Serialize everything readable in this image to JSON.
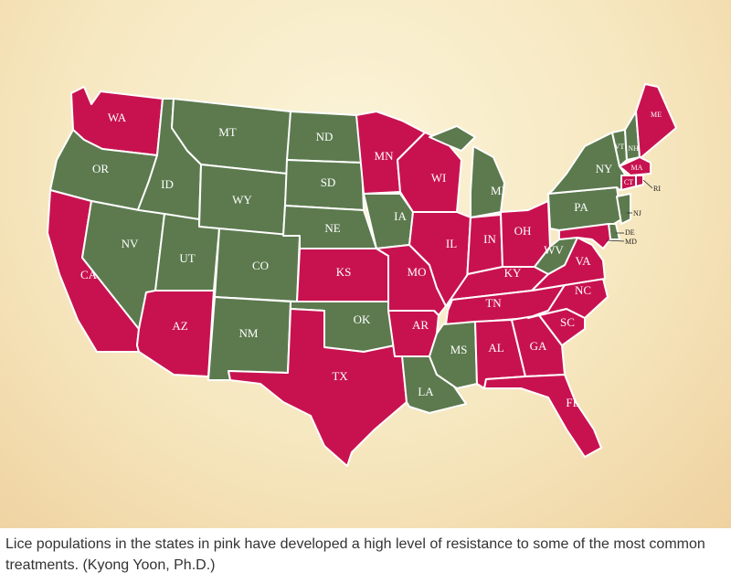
{
  "colors": {
    "resistant": "#c8124f",
    "other": "#5c7a4e",
    "border": "#ffffff",
    "background": "#f6e7bf"
  },
  "caption": "Lice populations in the states in pink have developed a high level of resistance to some of the most common treatments. (Kyong Yoon, Ph.D.)",
  "states": [
    {
      "code": "WA",
      "label": "WA",
      "resistant": true
    },
    {
      "code": "OR",
      "label": "OR",
      "resistant": false
    },
    {
      "code": "CA",
      "label": "CA",
      "resistant": true
    },
    {
      "code": "ID",
      "label": "ID",
      "resistant": false
    },
    {
      "code": "NV",
      "label": "NV",
      "resistant": false
    },
    {
      "code": "MT",
      "label": "MT",
      "resistant": false
    },
    {
      "code": "WY",
      "label": "WY",
      "resistant": false
    },
    {
      "code": "UT",
      "label": "UT",
      "resistant": false
    },
    {
      "code": "AZ",
      "label": "AZ",
      "resistant": true
    },
    {
      "code": "CO",
      "label": "CO",
      "resistant": false
    },
    {
      "code": "NM",
      "label": "NM",
      "resistant": false
    },
    {
      "code": "ND",
      "label": "ND",
      "resistant": false
    },
    {
      "code": "SD",
      "label": "SD",
      "resistant": false
    },
    {
      "code": "NE",
      "label": "NE",
      "resistant": false
    },
    {
      "code": "KS",
      "label": "KS",
      "resistant": true
    },
    {
      "code": "OK",
      "label": "OK",
      "resistant": false
    },
    {
      "code": "TX",
      "label": "TX",
      "resistant": true
    },
    {
      "code": "MN",
      "label": "MN",
      "resistant": true
    },
    {
      "code": "IA",
      "label": "IA",
      "resistant": false
    },
    {
      "code": "MO",
      "label": "MO",
      "resistant": true
    },
    {
      "code": "AR",
      "label": "AR",
      "resistant": true
    },
    {
      "code": "LA",
      "label": "LA",
      "resistant": false
    },
    {
      "code": "WI",
      "label": "WI",
      "resistant": true
    },
    {
      "code": "IL",
      "label": "IL",
      "resistant": true
    },
    {
      "code": "MI",
      "label": "MI",
      "resistant": false
    },
    {
      "code": "IN",
      "label": "IN",
      "resistant": true
    },
    {
      "code": "OH",
      "label": "OH",
      "resistant": true
    },
    {
      "code": "KY",
      "label": "KY",
      "resistant": true
    },
    {
      "code": "TN",
      "label": "TN",
      "resistant": true
    },
    {
      "code": "MS",
      "label": "MS",
      "resistant": false
    },
    {
      "code": "AL",
      "label": "AL",
      "resistant": true
    },
    {
      "code": "GA",
      "label": "GA",
      "resistant": true
    },
    {
      "code": "FL",
      "label": "FL",
      "resistant": true
    },
    {
      "code": "SC",
      "label": "SC",
      "resistant": true
    },
    {
      "code": "NC",
      "label": "NC",
      "resistant": true
    },
    {
      "code": "VA",
      "label": "VA",
      "resistant": true
    },
    {
      "code": "WV",
      "label": "WV",
      "resistant": false
    },
    {
      "code": "PA",
      "label": "PA",
      "resistant": false
    },
    {
      "code": "NY",
      "label": "NY",
      "resistant": false
    },
    {
      "code": "VT",
      "label": "VT",
      "resistant": false
    },
    {
      "code": "NH",
      "label": "NH",
      "resistant": false
    },
    {
      "code": "ME",
      "label": "ME",
      "resistant": true
    },
    {
      "code": "MA",
      "label": "MA",
      "resistant": true
    },
    {
      "code": "CT",
      "label": "CT",
      "resistant": true
    },
    {
      "code": "RI",
      "label": "RI",
      "resistant": true
    },
    {
      "code": "NJ",
      "label": "NJ",
      "resistant": false
    },
    {
      "code": "DE",
      "label": "DE",
      "resistant": false
    },
    {
      "code": "MD",
      "label": "MD",
      "resistant": true
    }
  ]
}
